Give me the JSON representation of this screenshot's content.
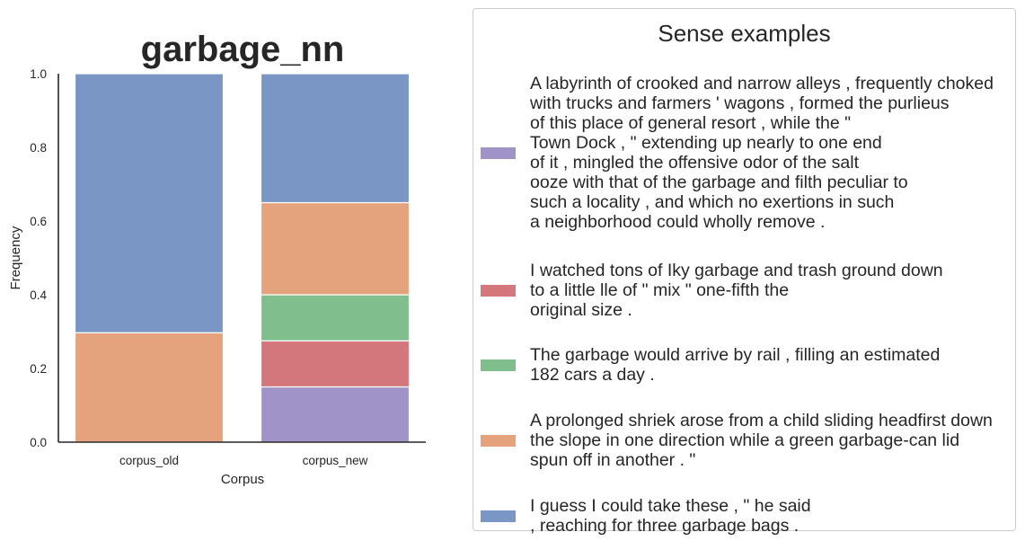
{
  "chart_data": {
    "type": "bar",
    "stacked": true,
    "title": "garbage_nn",
    "xlabel": "Corpus",
    "ylabel": "Frequency",
    "ylim": [
      0,
      1
    ],
    "yticks": [
      "0.0",
      "0.2",
      "0.4",
      "0.6",
      "0.8",
      "1.0"
    ],
    "categories": [
      "corpus_old",
      "corpus_new"
    ],
    "grid": false,
    "series": [
      {
        "name": "A labyrinth of crooked and narrow alleys , frequently choked\nwith trucks and farmers ' wagons , formed the purlieus\nof this place of general resort , while the \"\nTown Dock , \" extending up nearly to one end\nof it , mingled the offensive odor of the salt\nooze with that of the garbage and filth peculiar to\nsuch a locality , and which no exertions in such\na neighborhood could wholly remove .",
        "color": "#a093c7",
        "values": [
          0.0,
          0.15
        ]
      },
      {
        "name": "I watched tons of Iky garbage and trash ground down\nto a little lle of \" mix \" one-fifth the\noriginal size .",
        "color": "#d4777c",
        "values": [
          0.0,
          0.125
        ]
      },
      {
        "name": "The garbage would arrive by rail , filling an estimated\n182 cars a day .",
        "color": "#80be8e",
        "values": [
          0.0,
          0.125
        ]
      },
      {
        "name": "A prolonged shriek arose from a child sliding headfirst down\nthe slope in one direction while a green garbage-can lid\nspun off in another . \"",
        "color": "#e4a37d",
        "values": [
          0.297,
          0.25
        ]
      },
      {
        "name": "I guess I could take these , \" he said\n, reaching for three garbage bags .",
        "color": "#7996c5",
        "values": [
          0.703,
          0.35
        ]
      }
    ],
    "legend": {
      "title": "Sense examples",
      "placement": "right",
      "order": [
        0,
        1,
        2,
        3,
        4
      ]
    }
  }
}
